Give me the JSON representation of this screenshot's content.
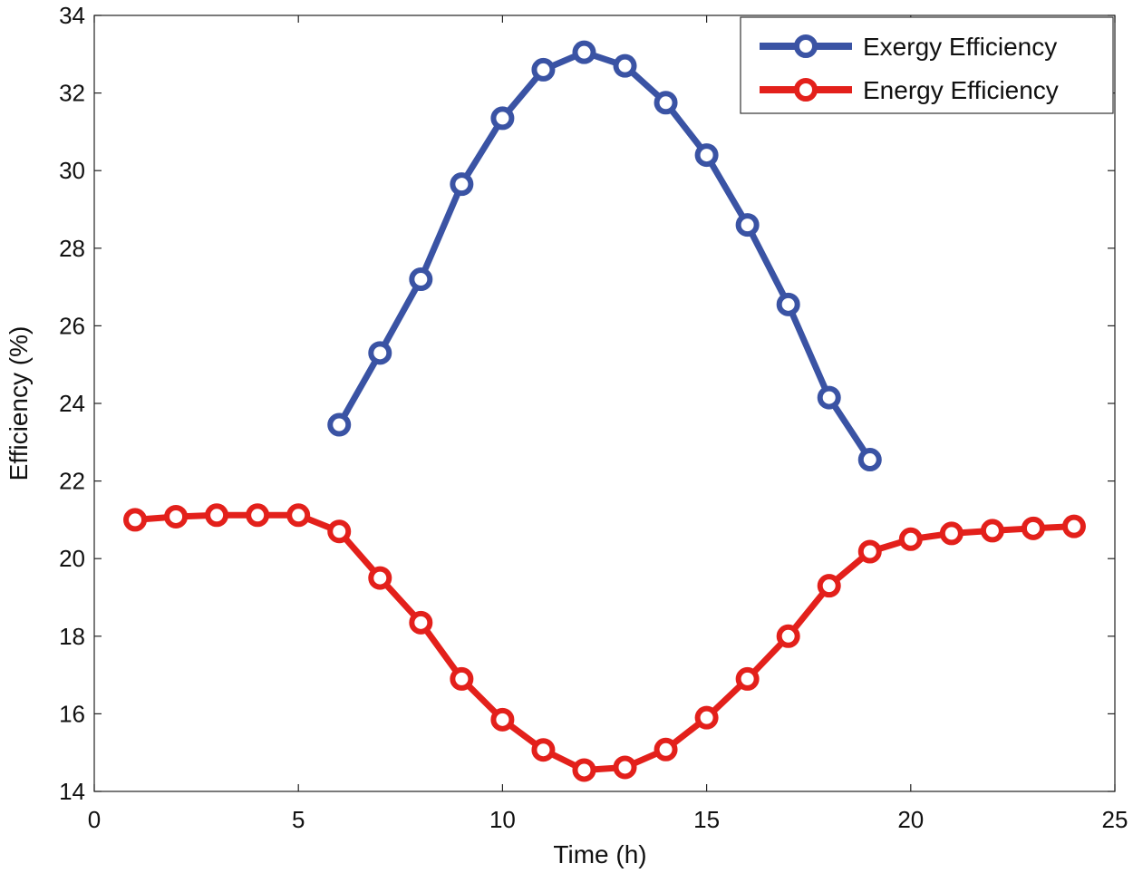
{
  "chart_data": {
    "type": "line",
    "title": "",
    "xlabel": "Time (h)",
    "ylabel": "Efficiency  (%)",
    "xlim": [
      0,
      25
    ],
    "ylim": [
      14,
      34
    ],
    "xticks": [
      0,
      5,
      10,
      15,
      20,
      25
    ],
    "yticks": [
      14,
      16,
      18,
      20,
      22,
      24,
      26,
      28,
      30,
      32,
      34
    ],
    "grid": false,
    "legend_position": "top-right",
    "series": [
      {
        "name": "Exergy Efficiency",
        "color": "#3a53a4",
        "x": [
          6,
          7,
          8,
          9,
          10,
          11,
          12,
          13,
          14,
          15,
          16,
          17,
          18,
          19
        ],
        "values": [
          23.45,
          25.3,
          27.2,
          29.65,
          31.35,
          32.6,
          33.05,
          32.7,
          31.75,
          30.4,
          28.6,
          26.55,
          24.15,
          22.55
        ]
      },
      {
        "name": "Energy Efficiency",
        "color": "#e3201b",
        "x": [
          1,
          2,
          3,
          4,
          5,
          6,
          7,
          8,
          9,
          10,
          11,
          12,
          13,
          14,
          15,
          16,
          17,
          18,
          19,
          20,
          21,
          22,
          23,
          24
        ],
        "values": [
          21.0,
          21.08,
          21.12,
          21.12,
          21.12,
          20.7,
          19.5,
          18.35,
          16.9,
          15.85,
          15.07,
          14.55,
          14.62,
          15.08,
          15.9,
          16.9,
          18.0,
          19.3,
          20.18,
          20.5,
          20.65,
          20.72,
          20.78,
          20.83
        ]
      }
    ]
  }
}
